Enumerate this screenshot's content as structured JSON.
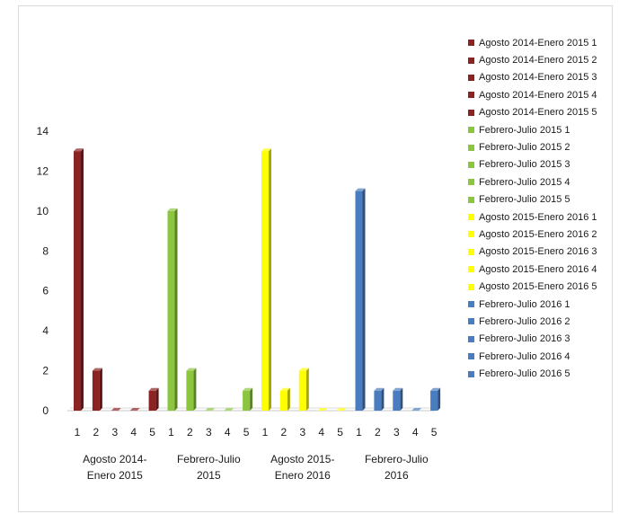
{
  "chart_data": {
    "type": "bar",
    "style": "3d-clustered-column",
    "groups": [
      "Agosto 2014-Enero 2015",
      "Febrero-Julio 2015",
      "Agosto 2015-Enero 2016",
      "Febrero-Julio 2016"
    ],
    "group_label_lines": [
      [
        "Agosto 2014-",
        "Enero 2015"
      ],
      [
        "Febrero-Julio",
        "2015"
      ],
      [
        "Agosto 2015-",
        "Enero 2016"
      ],
      [
        "Febrero-Julio",
        "2016"
      ]
    ],
    "categories": [
      "1",
      "2",
      "3",
      "4",
      "5"
    ],
    "series": [
      {
        "group": "Agosto 2014-Enero 2015",
        "values": [
          13,
          2,
          0,
          0,
          1
        ]
      },
      {
        "group": "Febrero-Julio 2015",
        "values": [
          10,
          2,
          0,
          0,
          1
        ]
      },
      {
        "group": "Agosto 2015-Enero 2016",
        "values": [
          13,
          1,
          2,
          0,
          0
        ]
      },
      {
        "group": "Febrero-Julio 2016",
        "values": [
          11,
          1,
          1,
          0,
          1
        ]
      }
    ],
    "colors": [
      "#8b2323",
      "#8cc63f",
      "#ffff00",
      "#4a7dbf"
    ],
    "ylim": [
      0,
      14
    ],
    "yticks": [
      0,
      2,
      4,
      6,
      8,
      10,
      12,
      14
    ],
    "grid": false,
    "legend_position": "right",
    "legend": [
      {
        "label": "Agosto 2014-Enero 2015 1",
        "color": "#8b2323"
      },
      {
        "label": "Agosto 2014-Enero 2015 2",
        "color": "#8b2323"
      },
      {
        "label": "Agosto 2014-Enero 2015 3",
        "color": "#8b2323"
      },
      {
        "label": "Agosto 2014-Enero 2015 4",
        "color": "#8b2323"
      },
      {
        "label": "Agosto 2014-Enero 2015 5",
        "color": "#8b2323"
      },
      {
        "label": "Febrero-Julio 2015 1",
        "color": "#8cc63f"
      },
      {
        "label": "Febrero-Julio 2015 2",
        "color": "#8cc63f"
      },
      {
        "label": "Febrero-Julio 2015 3",
        "color": "#8cc63f"
      },
      {
        "label": "Febrero-Julio 2015 4",
        "color": "#8cc63f"
      },
      {
        "label": "Febrero-Julio 2015 5",
        "color": "#8cc63f"
      },
      {
        "label": "Agosto 2015-Enero 2016 1",
        "color": "#ffff00"
      },
      {
        "label": "Agosto 2015-Enero 2016 2",
        "color": "#ffff00"
      },
      {
        "label": "Agosto 2015-Enero 2016 3",
        "color": "#ffff00"
      },
      {
        "label": "Agosto 2015-Enero 2016 4",
        "color": "#ffff00"
      },
      {
        "label": "Agosto 2015-Enero 2016 5",
        "color": "#ffff00"
      },
      {
        "label": "Febrero-Julio 2016 1",
        "color": "#4a7dbf"
      },
      {
        "label": "Febrero-Julio 2016 2",
        "color": "#4a7dbf"
      },
      {
        "label": "Febrero-Julio 2016 3",
        "color": "#4a7dbf"
      },
      {
        "label": "Febrero-Julio 2016 4",
        "color": "#4a7dbf"
      },
      {
        "label": "Febrero-Julio 2016 5",
        "color": "#4a7dbf"
      }
    ]
  }
}
